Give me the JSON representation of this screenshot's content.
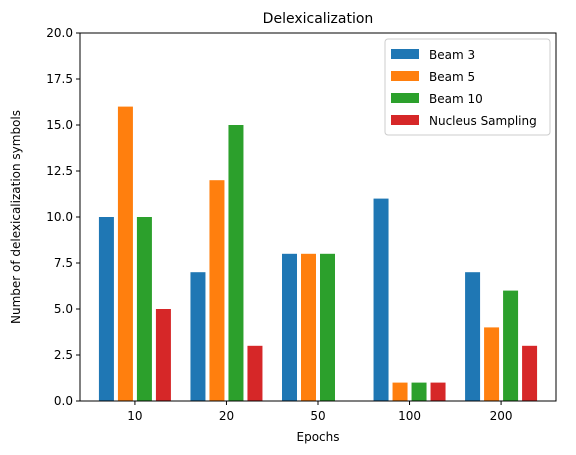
{
  "chart_data": {
    "type": "bar",
    "title": "Delexicalization",
    "xlabel": "Epochs",
    "ylabel": "Number of delexicalization symbols",
    "categories": [
      "10",
      "20",
      "50",
      "100",
      "200"
    ],
    "ylim": [
      0,
      20
    ],
    "yticks": [
      "0.0",
      "2.5",
      "5.0",
      "7.5",
      "10.0",
      "12.5",
      "15.0",
      "17.5",
      "20.0"
    ],
    "grid": false,
    "legend_position": "top-right",
    "series": [
      {
        "name": "Beam 3",
        "color": "#1f77b4",
        "values": [
          10,
          7,
          8,
          11,
          7
        ]
      },
      {
        "name": "Beam 5",
        "color": "#ff7f0e",
        "values": [
          16,
          12,
          8,
          1,
          4
        ]
      },
      {
        "name": "Beam 10",
        "color": "#2ca02c",
        "values": [
          10,
          15,
          8,
          1,
          6
        ]
      },
      {
        "name": "Nucleus Sampling",
        "color": "#d62728",
        "values": [
          5,
          3,
          0,
          1,
          3
        ]
      }
    ]
  }
}
